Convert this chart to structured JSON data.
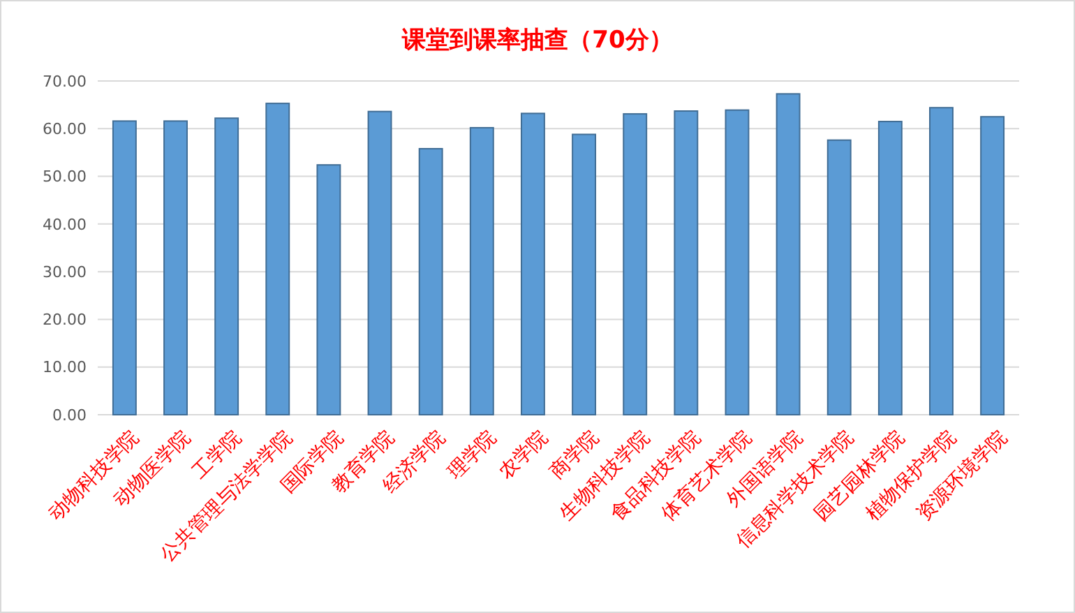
{
  "chart_data": {
    "type": "bar",
    "title": "课堂到课率抽查（70分）",
    "categories": [
      "动物科技学院",
      "动物医学院",
      "工学院",
      "公共管理与法学学院",
      "国际学院",
      "教育学院",
      "经济学院",
      "理学院",
      "农学院",
      "商学院",
      "生物科技学院",
      "食品科技学院",
      "体育艺术学院",
      "外国语学院",
      "信息科学技术学院",
      "园艺园林学院",
      "植物保护学院",
      "资源环境学院"
    ],
    "values": [
      61.6,
      61.6,
      62.2,
      65.3,
      52.4,
      63.6,
      55.8,
      60.2,
      63.2,
      58.8,
      63.1,
      63.7,
      63.9,
      67.3,
      57.6,
      61.5,
      64.4,
      62.5
    ],
    "color": "#5b9bd5",
    "ylim": [
      0,
      70
    ],
    "yticks": [
      {
        "value": 0,
        "label": "0.00"
      },
      {
        "value": 10,
        "label": "10.00"
      },
      {
        "value": 20,
        "label": "20.00"
      },
      {
        "value": 30,
        "label": "30.00"
      },
      {
        "value": 40,
        "label": "40.00"
      },
      {
        "value": 50,
        "label": "50.00"
      },
      {
        "value": 60,
        "label": "60.00"
      },
      {
        "value": 70,
        "label": "70.00"
      }
    ],
    "grid": "y"
  }
}
